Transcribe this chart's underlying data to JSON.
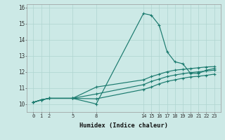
{
  "xlabel": "Humidex (Indice chaleur)",
  "bg_color": "#cce9e6",
  "grid_color": "#afd4d0",
  "line_color": "#1a7a6e",
  "xlim": [
    -0.8,
    23.8
  ],
  "ylim": [
    9.5,
    16.2
  ],
  "xticks": [
    0,
    1,
    2,
    5,
    8,
    14,
    15,
    16,
    17,
    18,
    19,
    20,
    21,
    22,
    23
  ],
  "yticks": [
    10,
    11,
    12,
    13,
    14,
    15,
    16
  ],
  "series1_x": [
    0,
    1,
    2,
    5,
    8,
    14,
    15,
    16,
    17,
    18,
    19,
    20,
    21,
    22,
    23
  ],
  "series1_y": [
    10.1,
    10.25,
    10.35,
    10.35,
    10.0,
    15.62,
    15.52,
    14.9,
    13.25,
    12.62,
    12.5,
    11.9,
    11.9,
    12.1,
    12.2
  ],
  "series2_x": [
    0,
    1,
    2,
    5,
    8,
    14,
    15,
    16,
    17,
    18,
    19,
    20,
    21,
    22,
    23
  ],
  "series2_y": [
    10.1,
    10.25,
    10.35,
    10.35,
    11.05,
    11.5,
    11.7,
    11.85,
    12.0,
    12.1,
    12.15,
    12.2,
    12.25,
    12.3,
    12.32
  ],
  "series3_x": [
    0,
    1,
    2,
    5,
    8,
    14,
    15,
    16,
    17,
    18,
    19,
    20,
    21,
    22,
    23
  ],
  "series3_y": [
    10.1,
    10.25,
    10.35,
    10.35,
    10.62,
    11.2,
    11.4,
    11.55,
    11.7,
    11.8,
    11.88,
    11.95,
    12.0,
    12.05,
    12.1
  ],
  "series4_x": [
    0,
    1,
    2,
    5,
    8,
    14,
    15,
    16,
    17,
    18,
    19,
    20,
    21,
    22,
    23
  ],
  "series4_y": [
    10.1,
    10.25,
    10.35,
    10.35,
    10.32,
    10.9,
    11.05,
    11.25,
    11.4,
    11.5,
    11.6,
    11.68,
    11.72,
    11.78,
    11.85
  ]
}
